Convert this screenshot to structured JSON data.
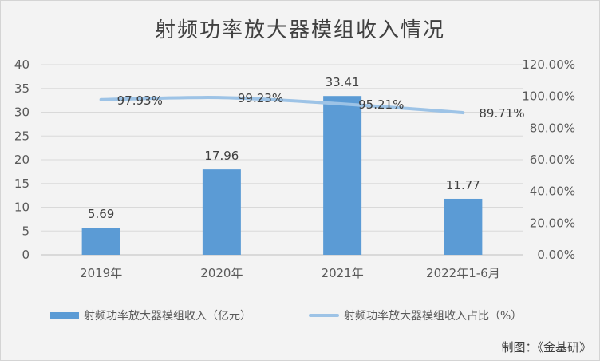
{
  "title": "射频功率放大器模组收入情况",
  "credit": "制图：《金基研》",
  "chart_data": {
    "type": "bar",
    "categories": [
      "2019年",
      "2020年",
      "2021年",
      "2022年1-6月"
    ],
    "series": [
      {
        "name": "射频功率放大器模组收入（亿元）",
        "type": "bar",
        "axis": "left",
        "values": [
          5.69,
          17.96,
          33.41,
          11.77
        ],
        "labels": [
          "5.69",
          "17.96",
          "33.41",
          "11.77"
        ],
        "color": "#5b9bd5"
      },
      {
        "name": "射频功率放大器模组收入占比（%）",
        "type": "line",
        "axis": "right",
        "values": [
          97.93,
          99.23,
          95.21,
          89.71
        ],
        "labels": [
          "97.93%",
          "99.23%",
          "95.21%",
          "89.71%"
        ],
        "color": "#9dc3e6"
      }
    ],
    "y_left": {
      "min": 0,
      "max": 40,
      "ticks": [
        "0",
        "5",
        "10",
        "15",
        "20",
        "25",
        "30",
        "35",
        "40"
      ]
    },
    "y_right": {
      "min": 0,
      "max": 120,
      "ticks": [
        "0.00%",
        "20.00%",
        "40.00%",
        "60.00%",
        "80.00%",
        "100.00%",
        "120.00%"
      ]
    },
    "grid": true,
    "legend_position": "bottom"
  }
}
